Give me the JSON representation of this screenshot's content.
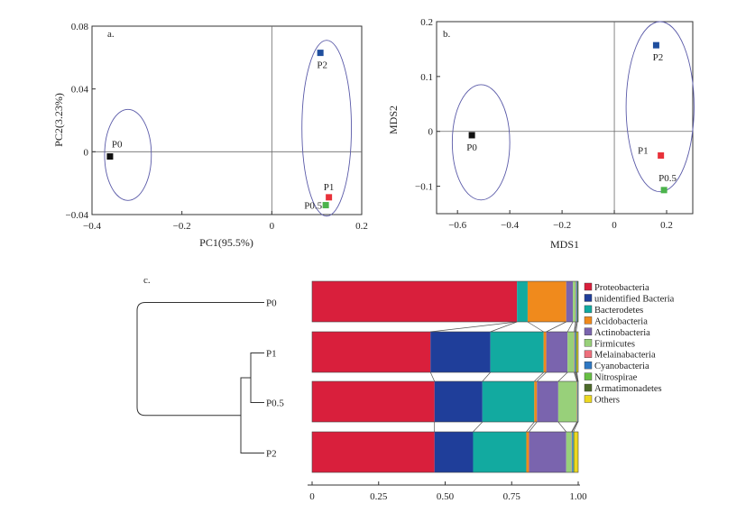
{
  "colors": {
    "axis": "#333333",
    "ellipse": "#5a5aa8",
    "zero_line": "#6a6a6a",
    "connector": "#555555",
    "dendrogram": "#333333"
  },
  "chart_data": [
    {
      "type": "scatter",
      "panel_label": "a.",
      "xlabel": "PC1(95.5%)",
      "ylabel": "PC2(3.23%)",
      "xlim": [
        -0.4,
        0.2
      ],
      "ylim": [
        -0.04,
        0.08
      ],
      "xticks": [
        -0.4,
        -0.2,
        0,
        0.2
      ],
      "xtick_labels": [
        "−0.4",
        "−0.2",
        "0",
        "0.2"
      ],
      "yticks": [
        -0.04,
        0,
        0.04,
        0.08
      ],
      "ytick_labels": [
        "−0.04",
        "0",
        "0.04",
        "0.08"
      ],
      "points": [
        {
          "name": "P0",
          "x": -0.36,
          "y": -0.003,
          "color": "#111111"
        },
        {
          "name": "P2",
          "x": 0.108,
          "y": 0.063,
          "color": "#1f4e9e"
        },
        {
          "name": "P1",
          "x": 0.127,
          "y": -0.029,
          "color": "#e8323a"
        },
        {
          "name": "P0.5",
          "x": 0.12,
          "y": -0.034,
          "color": "#4cb34c"
        }
      ],
      "groups": [
        {
          "name": "P0 group",
          "cx": -0.32,
          "cy": -0.002,
          "rx": 0.052,
          "ry": 0.029
        },
        {
          "name": "P1 P2 P0.5 group",
          "cx": 0.122,
          "cy": 0.015,
          "rx": 0.055,
          "ry": 0.056
        }
      ]
    },
    {
      "type": "scatter",
      "panel_label": "b.",
      "xlabel": "MDS1",
      "ylabel": "MDS2",
      "xlim": [
        -0.68,
        0.3
      ],
      "ylim": [
        -0.15,
        0.2
      ],
      "xticks": [
        -0.6,
        -0.4,
        -0.2,
        0,
        0.2
      ],
      "xtick_labels": [
        "−0.6",
        "−0.4",
        "−0.2",
        "0",
        "0.2"
      ],
      "yticks": [
        -0.1,
        0,
        0.1,
        0.2
      ],
      "ytick_labels": [
        "−0.1",
        "0",
        "0.1",
        "0.2"
      ],
      "points": [
        {
          "name": "P0",
          "x": -0.545,
          "y": -0.007,
          "color": "#111111"
        },
        {
          "name": "P2",
          "x": 0.16,
          "y": 0.157,
          "color": "#1f4e9e"
        },
        {
          "name": "P1",
          "x": 0.178,
          "y": -0.044,
          "color": "#e8323a"
        },
        {
          "name": "P0.5",
          "x": 0.19,
          "y": -0.107,
          "color": "#4cb34c"
        }
      ],
      "groups": [
        {
          "name": "P0 group",
          "cx": -0.51,
          "cy": -0.02,
          "rx": 0.11,
          "ry": 0.105
        },
        {
          "name": "P1 P2 P0.5 group",
          "cx": 0.175,
          "cy": 0.045,
          "rx": 0.13,
          "ry": 0.155
        }
      ]
    },
    {
      "type": "bar",
      "orientation": "horizontal",
      "stacked": true,
      "panel_label": "c.",
      "samples": [
        "P0",
        "P1",
        "P0.5",
        "P2"
      ],
      "xlim": [
        0,
        1
      ],
      "xticks": [
        0,
        0.25,
        0.5,
        0.75,
        1
      ],
      "xtick_labels": [
        "0",
        "0.25",
        "0.50",
        "0.75",
        "1.00"
      ],
      "legend_position": "right",
      "series": [
        {
          "name": "Proteobacteria",
          "color": "#d91f3c",
          "values": [
            0.77,
            0.445,
            0.46,
            0.46
          ]
        },
        {
          "name": "unidentified Bacteria",
          "color": "#1f3e9a",
          "values": [
            0.0,
            0.225,
            0.18,
            0.145
          ]
        },
        {
          "name": "Bacterodetes",
          "color": "#12aaa0",
          "values": [
            0.04,
            0.2,
            0.195,
            0.2
          ]
        },
        {
          "name": "Acidobacteria",
          "color": "#f08a1c",
          "values": [
            0.145,
            0.01,
            0.01,
            0.01
          ]
        },
        {
          "name": "Actinobacteria",
          "color": "#7a64ae",
          "values": [
            0.025,
            0.08,
            0.08,
            0.14
          ]
        },
        {
          "name": "Firmicutes",
          "color": "#98d07a",
          "values": [
            0.01,
            0.025,
            0.07,
            0.02
          ]
        },
        {
          "name": "Melainabacteria",
          "color": "#ee6f7c",
          "values": [
            0.002,
            0.002,
            0.002,
            0.002
          ]
        },
        {
          "name": "Cyanobacteria",
          "color": "#2f78c3",
          "values": [
            0.004,
            0.004,
            0.002,
            0.005
          ]
        },
        {
          "name": "Nitrospirae",
          "color": "#67bf44",
          "values": [
            0.001,
            0.001,
            0.001,
            0.001
          ]
        },
        {
          "name": "Armatimonadetes",
          "color": "#4d6b2a",
          "values": [
            0.003,
            0.003,
            0.0,
            0.002
          ]
        },
        {
          "name": "Others",
          "color": "#ecd820",
          "values": [
            0.0,
            0.005,
            0.0,
            0.015
          ]
        }
      ],
      "dendrogram": {
        "leaves": [
          "P0",
          "P1",
          "P0.5",
          "P2"
        ],
        "merges": [
          [
            "P1",
            "P0.5"
          ],
          [
            "P1+P0.5",
            "P2"
          ],
          [
            "P0",
            "P1+P0.5+P2"
          ]
        ]
      }
    }
  ]
}
